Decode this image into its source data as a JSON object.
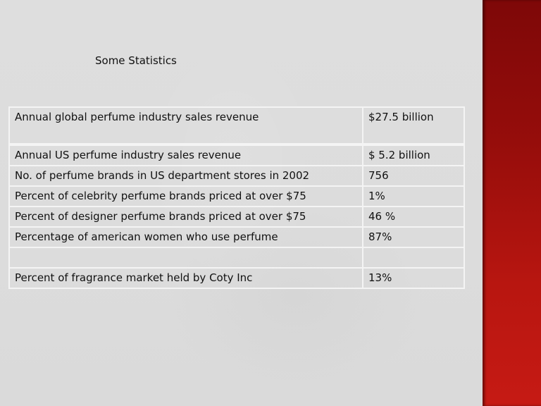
{
  "slide": {
    "title": "Some Statistics",
    "accent_color": "#a8120e",
    "table": {
      "rows": [
        {
          "label": "Annual global perfume industry sales revenue",
          "value": "$27.5 billion"
        },
        {
          "label": "Annual US perfume industry sales revenue",
          "value": "$ 5.2 billion"
        },
        {
          "label": "No. of perfume brands in US department stores in 2002",
          "value": "756"
        },
        {
          "label": "Percent of celebrity perfume brands priced at over $75",
          "value": "1%"
        },
        {
          "label": "Percent of designer perfume brands priced at over $75",
          "value": "46 %"
        },
        {
          "label": "Percentage of american women who use perfume",
          "value": "87%"
        },
        {
          "label": "",
          "value": ""
        },
        {
          "label": "Percent of fragrance market held by Coty Inc",
          "value": "13%"
        }
      ]
    }
  }
}
